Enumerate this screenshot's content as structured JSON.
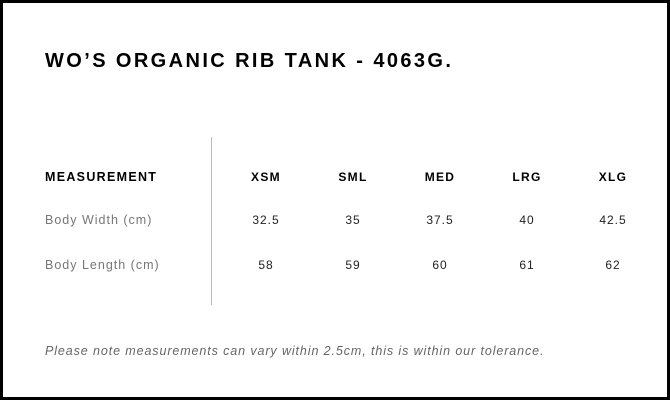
{
  "title": "WO’S ORGANIC RIB TANK - 4063G.",
  "table": {
    "header_label": "MEASUREMENT",
    "sizes": [
      "XSM",
      "SML",
      "MED",
      "LRG",
      "XLG"
    ],
    "rows": [
      {
        "label": "Body Width (cm)",
        "values": [
          "32.5",
          "35",
          "37.5",
          "40",
          "42.5"
        ]
      },
      {
        "label": "Body Length (cm)",
        "values": [
          "58",
          "59",
          "60",
          "61",
          "62"
        ]
      }
    ]
  },
  "note": "Please note measurements can vary within 2.5cm, this is within our tolerance."
}
